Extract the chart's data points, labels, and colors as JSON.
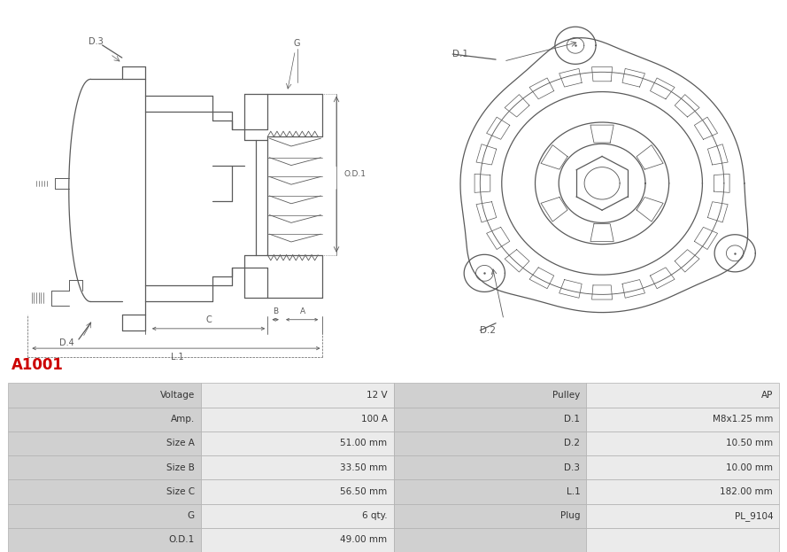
{
  "title": "A1001",
  "title_color": "#cc0000",
  "table_data": [
    [
      "Voltage",
      "12 V",
      "Pulley",
      "AP"
    ],
    [
      "Amp.",
      "100 A",
      "D.1",
      "M8x1.25 mm"
    ],
    [
      "Size A",
      "51.00 mm",
      "D.2",
      "10.50 mm"
    ],
    [
      "Size B",
      "33.50 mm",
      "D.3",
      "10.00 mm"
    ],
    [
      "Size C",
      "56.50 mm",
      "L.1",
      "182.00 mm"
    ],
    [
      "G",
      "6 qty.",
      "Plug",
      "PL_9104"
    ],
    [
      "O.D.1",
      "49.00 mm",
      "",
      ""
    ]
  ],
  "bg_color": "#ffffff",
  "lc": "#5a5a5a",
  "lw": 0.9
}
